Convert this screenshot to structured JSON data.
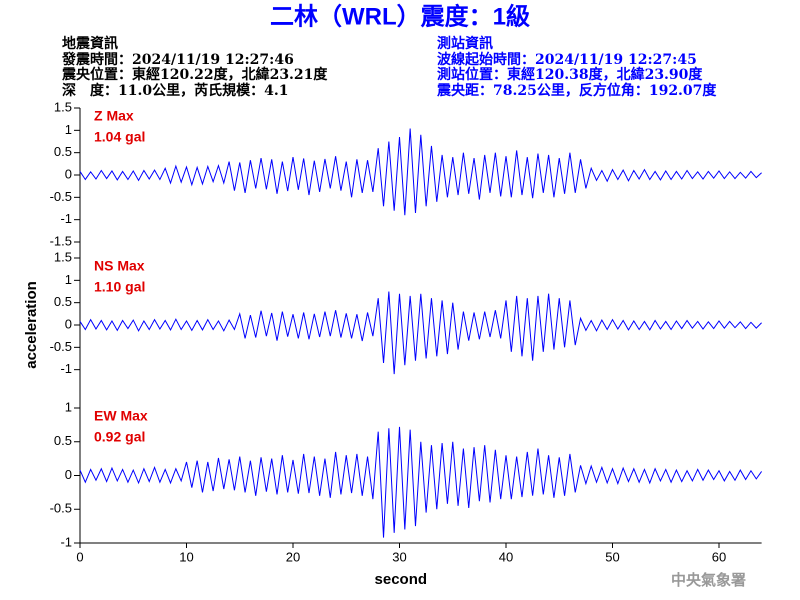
{
  "header": {
    "title": "二林（WRL）震度：1級",
    "left": [
      "地震資訊",
      "發震時間：2024/11/19 12:27:46",
      "震央位置：東經120.22度，北緯23.21度",
      "深　度：11.0公里，芮氏規模：4.1"
    ],
    "right": [
      "測站資訊",
      "波線起始時間：2024/11/19 12:27:45",
      "測站位置：東經120.38度，北緯23.90度",
      "震央距：78.25公里，反方位角：192.07度"
    ],
    "footer": "中央氣象署"
  },
  "chart_data": [
    {
      "type": "line",
      "annotation": [
        "Z Max",
        "1.04 gal"
      ],
      "xlim": [
        0,
        64
      ],
      "ylim": [
        -1.5,
        1.5
      ],
      "yticks": [
        1.5,
        1,
        0.5,
        0,
        -0.5,
        -1,
        -1.5
      ],
      "x": [
        0,
        0.5,
        1,
        1.5,
        2,
        2.5,
        3,
        3.5,
        4,
        4.5,
        5,
        5.5,
        6,
        6.5,
        7,
        7.5,
        8,
        8.5,
        9,
        9.5,
        10,
        10.5,
        11,
        11.5,
        12,
        12.5,
        13,
        13.5,
        14,
        14.5,
        15,
        15.5,
        16,
        16.5,
        17,
        17.5,
        18,
        18.5,
        19,
        19.5,
        20,
        20.5,
        21,
        21.5,
        22,
        22.5,
        23,
        23.5,
        24,
        24.5,
        25,
        25.5,
        26,
        26.5,
        27,
        27.5,
        28,
        28.5,
        29,
        29.5,
        30,
        30.5,
        31,
        31.5,
        32,
        32.5,
        33,
        33.5,
        34,
        34.5,
        35,
        35.5,
        36,
        36.5,
        37,
        37.5,
        38,
        38.5,
        39,
        39.5,
        40,
        40.5,
        41,
        41.5,
        42,
        42.5,
        43,
        43.5,
        44,
        44.5,
        45,
        45.5,
        46,
        46.5,
        47,
        47.5,
        48,
        48.5,
        49,
        49.5,
        50,
        50.5,
        51,
        51.5,
        52,
        52.5,
        53,
        53.5,
        54,
        54.5,
        55,
        55.5,
        56,
        56.5,
        57,
        57.5,
        58,
        58.5,
        59,
        59.5,
        60,
        60.5,
        61,
        61.5,
        62,
        62.5,
        63,
        63.5,
        64
      ],
      "series": [
        {
          "color": "#0000ff",
          "values": [
            0.08,
            -0.1,
            0.07,
            -0.09,
            0.1,
            -0.08,
            0.09,
            -0.11,
            0.08,
            -0.1,
            0.09,
            -0.12,
            0.1,
            -0.09,
            0.11,
            -0.1,
            0.15,
            -0.18,
            0.2,
            -0.16,
            0.18,
            -0.22,
            0.17,
            -0.2,
            0.19,
            -0.15,
            0.21,
            -0.18,
            0.3,
            -0.35,
            0.28,
            -0.4,
            0.33,
            -0.3,
            0.38,
            -0.32,
            0.35,
            -0.42,
            0.3,
            -0.36,
            0.4,
            -0.33,
            0.37,
            -0.45,
            0.32,
            -0.38,
            0.36,
            -0.3,
            0.42,
            -0.35,
            0.3,
            -0.5,
            0.35,
            -0.4,
            0.33,
            -0.38,
            0.6,
            -0.7,
            0.75,
            -0.8,
            0.85,
            -0.9,
            1.04,
            -0.85,
            0.9,
            -0.7,
            0.65,
            -0.6,
            0.45,
            -0.5,
            0.4,
            -0.45,
            0.5,
            -0.42,
            0.38,
            -0.55,
            0.45,
            -0.4,
            0.5,
            -0.48,
            0.42,
            -0.5,
            0.55,
            -0.45,
            0.4,
            -0.52,
            0.48,
            -0.4,
            0.45,
            -0.5,
            0.38,
            -0.42,
            0.5,
            -0.4,
            0.35,
            -0.3,
            0.15,
            -0.12,
            0.1,
            -0.14,
            0.12,
            -0.1,
            0.11,
            -0.13,
            0.1,
            -0.09,
            0.12,
            -0.1,
            0.08,
            -0.11,
            0.09,
            -0.1,
            0.08,
            -0.09,
            0.1,
            -0.08,
            0.07,
            -0.09,
            0.08,
            -0.07,
            0.09,
            -0.08,
            0.07,
            -0.08,
            0.06,
            -0.07,
            0.08,
            -0.06,
            0.05
          ]
        }
      ]
    },
    {
      "type": "line",
      "annotation": [
        "NS Max",
        "1.10 gal"
      ],
      "ylabel": "acceleration",
      "xlim": [
        0,
        64
      ],
      "ylim": [
        -1.5,
        1.5
      ],
      "yticks": [
        1.5,
        1,
        0.5,
        0,
        -0.5,
        -1
      ],
      "x": [
        0,
        0.5,
        1,
        1.5,
        2,
        2.5,
        3,
        3.5,
        4,
        4.5,
        5,
        5.5,
        6,
        6.5,
        7,
        7.5,
        8,
        8.5,
        9,
        9.5,
        10,
        10.5,
        11,
        11.5,
        12,
        12.5,
        13,
        13.5,
        14,
        14.5,
        15,
        15.5,
        16,
        16.5,
        17,
        17.5,
        18,
        18.5,
        19,
        19.5,
        20,
        20.5,
        21,
        21.5,
        22,
        22.5,
        23,
        23.5,
        24,
        24.5,
        25,
        25.5,
        26,
        26.5,
        27,
        27.5,
        28,
        28.5,
        29,
        29.5,
        30,
        30.5,
        31,
        31.5,
        32,
        32.5,
        33,
        33.5,
        34,
        34.5,
        35,
        35.5,
        36,
        36.5,
        37,
        37.5,
        38,
        38.5,
        39,
        39.5,
        40,
        40.5,
        41,
        41.5,
        42,
        42.5,
        43,
        43.5,
        44,
        44.5,
        45,
        45.5,
        46,
        46.5,
        47,
        47.5,
        48,
        48.5,
        49,
        49.5,
        50,
        50.5,
        51,
        51.5,
        52,
        52.5,
        53,
        53.5,
        54,
        54.5,
        55,
        55.5,
        56,
        56.5,
        57,
        57.5,
        58,
        58.5,
        59,
        59.5,
        60,
        60.5,
        61,
        61.5,
        62,
        62.5,
        63,
        63.5,
        64
      ],
      "series": [
        {
          "color": "#0000ff",
          "values": [
            0.08,
            -0.1,
            0.12,
            -0.09,
            0.1,
            -0.11,
            0.09,
            -0.12,
            0.1,
            -0.08,
            0.11,
            -0.13,
            0.09,
            -0.1,
            0.12,
            -0.09,
            0.1,
            -0.11,
            0.13,
            -0.1,
            0.09,
            -0.12,
            0.1,
            -0.11,
            0.12,
            -0.1,
            0.09,
            -0.13,
            0.11,
            -0.1,
            0.25,
            -0.3,
            0.22,
            -0.28,
            0.32,
            -0.25,
            0.27,
            -0.35,
            0.3,
            -0.26,
            0.24,
            -0.3,
            0.28,
            -0.32,
            0.25,
            -0.27,
            0.3,
            -0.25,
            0.33,
            -0.28,
            0.26,
            -0.3,
            0.24,
            -0.36,
            0.28,
            -0.25,
            0.6,
            -0.85,
            0.75,
            -1.1,
            0.7,
            -0.9,
            0.65,
            -0.8,
            0.7,
            -0.75,
            0.6,
            -0.7,
            0.55,
            -0.65,
            0.5,
            -0.55,
            0.3,
            -0.35,
            0.28,
            -0.32,
            0.3,
            -0.27,
            0.33,
            -0.3,
            0.55,
            -0.6,
            0.65,
            -0.7,
            0.6,
            -0.8,
            0.65,
            -0.6,
            0.7,
            -0.55,
            0.6,
            -0.5,
            0.55,
            -0.45,
            0.15,
            -0.12,
            0.1,
            -0.13,
            0.11,
            -0.1,
            0.12,
            -0.09,
            0.1,
            -0.11,
            0.09,
            -0.1,
            0.08,
            -0.11,
            0.1,
            -0.09,
            0.08,
            -0.1,
            0.09,
            -0.08,
            0.1,
            -0.07,
            0.08,
            -0.09,
            0.07,
            -0.08,
            0.09,
            -0.07,
            0.08,
            -0.06,
            0.07,
            -0.08,
            0.06,
            -0.07,
            0.05
          ]
        }
      ]
    },
    {
      "type": "line",
      "annotation": [
        "EW Max",
        "0.92 gal"
      ],
      "xlabel": "second",
      "xlim": [
        0,
        64
      ],
      "xticks": [
        0,
        10,
        20,
        30,
        40,
        50,
        60
      ],
      "ylim": [
        -1,
        1
      ],
      "yticks": [
        1,
        0.5,
        0,
        -0.5,
        -1
      ],
      "x": [
        0,
        0.5,
        1,
        1.5,
        2,
        2.5,
        3,
        3.5,
        4,
        4.5,
        5,
        5.5,
        6,
        6.5,
        7,
        7.5,
        8,
        8.5,
        9,
        9.5,
        10,
        10.5,
        11,
        11.5,
        12,
        12.5,
        13,
        13.5,
        14,
        14.5,
        15,
        15.5,
        16,
        16.5,
        17,
        17.5,
        18,
        18.5,
        19,
        19.5,
        20,
        20.5,
        21,
        21.5,
        22,
        22.5,
        23,
        23.5,
        24,
        24.5,
        25,
        25.5,
        26,
        26.5,
        27,
        27.5,
        28,
        28.5,
        29,
        29.5,
        30,
        30.5,
        31,
        31.5,
        32,
        32.5,
        33,
        33.5,
        34,
        34.5,
        35,
        35.5,
        36,
        36.5,
        37,
        37.5,
        38,
        38.5,
        39,
        39.5,
        40,
        40.5,
        41,
        41.5,
        42,
        42.5,
        43,
        43.5,
        44,
        44.5,
        45,
        45.5,
        46,
        46.5,
        47,
        47.5,
        48,
        48.5,
        49,
        49.5,
        50,
        50.5,
        51,
        51.5,
        52,
        52.5,
        53,
        53.5,
        54,
        54.5,
        55,
        55.5,
        56,
        56.5,
        57,
        57.5,
        58,
        58.5,
        59,
        59.5,
        60,
        60.5,
        61,
        61.5,
        62,
        62.5,
        63,
        63.5,
        64
      ],
      "series": [
        {
          "color": "#0000ff",
          "values": [
            0.08,
            -0.1,
            0.09,
            -0.07,
            0.1,
            -0.09,
            0.11,
            -0.08,
            0.09,
            -0.1,
            0.08,
            -0.11,
            0.1,
            -0.09,
            0.12,
            -0.1,
            0.09,
            -0.11,
            0.1,
            -0.08,
            0.2,
            -0.18,
            0.22,
            -0.25,
            0.2,
            -0.23,
            0.26,
            -0.2,
            0.24,
            -0.22,
            0.28,
            -0.25,
            0.22,
            -0.3,
            0.27,
            -0.24,
            0.25,
            -0.28,
            0.3,
            -0.25,
            0.23,
            -0.27,
            0.32,
            -0.26,
            0.28,
            -0.3,
            0.25,
            -0.33,
            0.35,
            -0.28,
            0.3,
            -0.26,
            0.32,
            -0.3,
            0.28,
            -0.35,
            0.65,
            -0.92,
            0.7,
            -0.85,
            0.72,
            -0.8,
            0.68,
            -0.75,
            0.5,
            -0.55,
            0.45,
            -0.5,
            0.48,
            -0.42,
            0.5,
            -0.45,
            0.4,
            -0.48,
            0.42,
            -0.38,
            0.45,
            -0.4,
            0.38,
            -0.35,
            0.3,
            -0.35,
            0.28,
            -0.32,
            0.35,
            -0.3,
            0.4,
            -0.28,
            0.3,
            -0.33,
            0.27,
            -0.3,
            0.32,
            -0.25,
            0.15,
            -0.12,
            0.14,
            -0.1,
            0.12,
            -0.11,
            0.1,
            -0.12,
            0.11,
            -0.09,
            0.1,
            -0.1,
            0.09,
            -0.11,
            0.1,
            -0.08,
            0.09,
            -0.1,
            0.08,
            -0.09,
            0.07,
            -0.08,
            0.09,
            -0.07,
            0.08,
            -0.06,
            0.07,
            -0.08,
            0.06,
            -0.07,
            0.08,
            -0.06,
            0.07,
            -0.05,
            0.06
          ]
        }
      ]
    }
  ]
}
